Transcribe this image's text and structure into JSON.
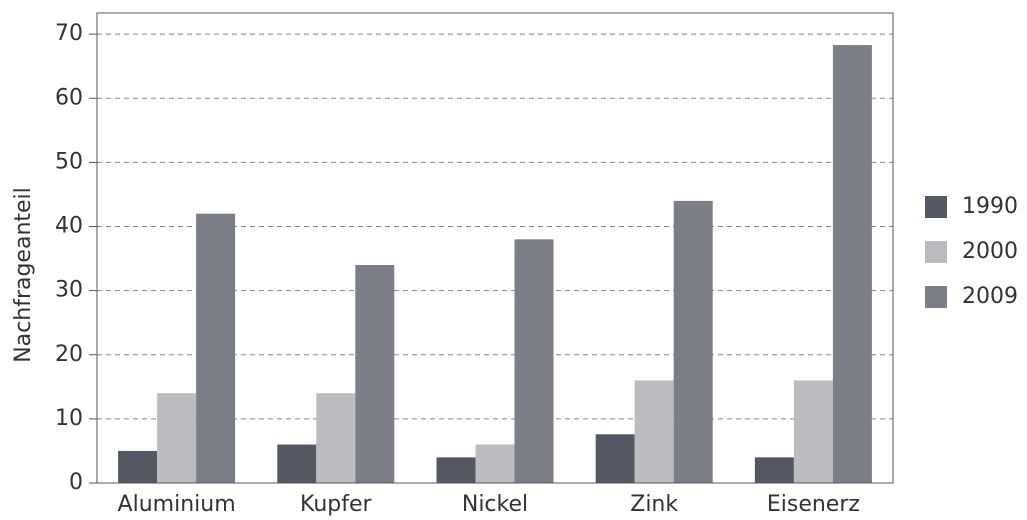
{
  "chart_data": {
    "type": "bar",
    "y_label": "Nachfrageanteil",
    "categories": [
      "Aluminium",
      "Kupfer",
      "Nickel",
      "Zink",
      "Eisenerz"
    ],
    "series": [
      {
        "name": "1990",
        "color": "#545862",
        "values": [
          5,
          6,
          4,
          7.6,
          4
        ]
      },
      {
        "name": "2000",
        "color": "#bcbcc0",
        "values": [
          14,
          14,
          6,
          16,
          16
        ]
      },
      {
        "name": "2009",
        "color": "#7b7e86",
        "values": [
          42,
          34,
          38,
          44,
          68.3
        ]
      }
    ],
    "ylim": [
      0,
      73.3
    ],
    "yticks": [
      0,
      10,
      20,
      30,
      40,
      50,
      60,
      70
    ],
    "grid": true,
    "legend": "right"
  }
}
